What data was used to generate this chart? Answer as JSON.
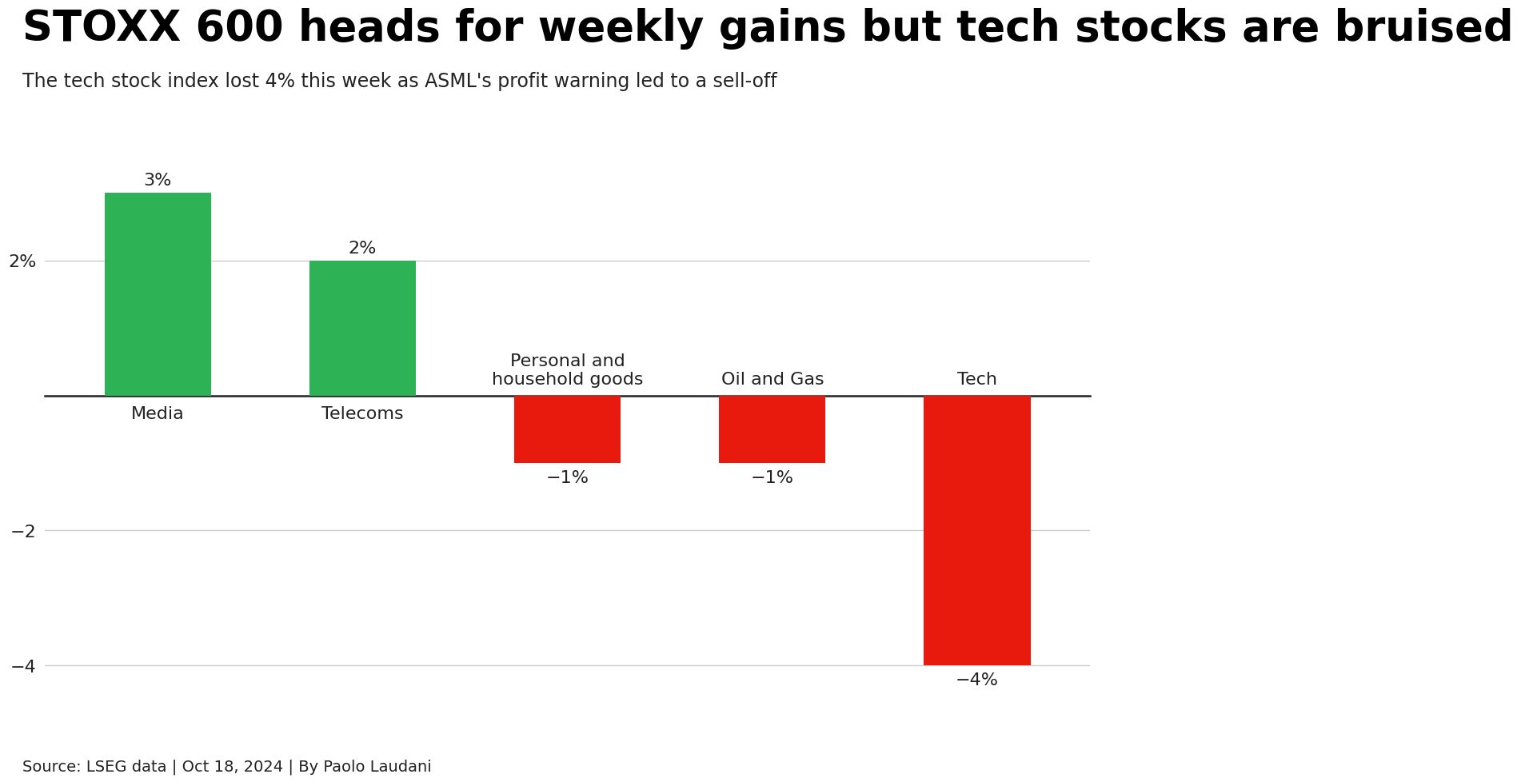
{
  "title": "STOXX 600 heads for weekly gains but tech stocks are bruised",
  "subtitle": "The tech stock index lost 4% this week as ASML's profit warning led to a sell-off",
  "categories": [
    "Media",
    "Telecoms",
    "Personal and\nhousehold goods",
    "Oil and Gas",
    "Tech"
  ],
  "values": [
    3,
    2,
    -1,
    -1,
    -4
  ],
  "bar_colors": [
    "#2db356",
    "#2db356",
    "#e81a0e",
    "#e81a0e",
    "#e81a0e"
  ],
  "value_labels": [
    "3%",
    "2%",
    "−1%",
    "−1%",
    "−4%"
  ],
  "ylim": [
    -4.8,
    4.2
  ],
  "yticks": [
    -4,
    -2,
    2
  ],
  "ytick_labels": [
    "−4",
    "−2",
    "2%"
  ],
  "source": "Source: LSEG data | Oct 18, 2024 | By Paolo Laudani",
  "background_color": "#ffffff",
  "title_fontsize": 38,
  "subtitle_fontsize": 17,
  "bar_width": 0.52,
  "grid_color": "#cccccc",
  "axis_color": "#222222",
  "text_color": "#222222",
  "value_label_fontsize": 16,
  "cat_label_fontsize": 16,
  "source_fontsize": 14
}
